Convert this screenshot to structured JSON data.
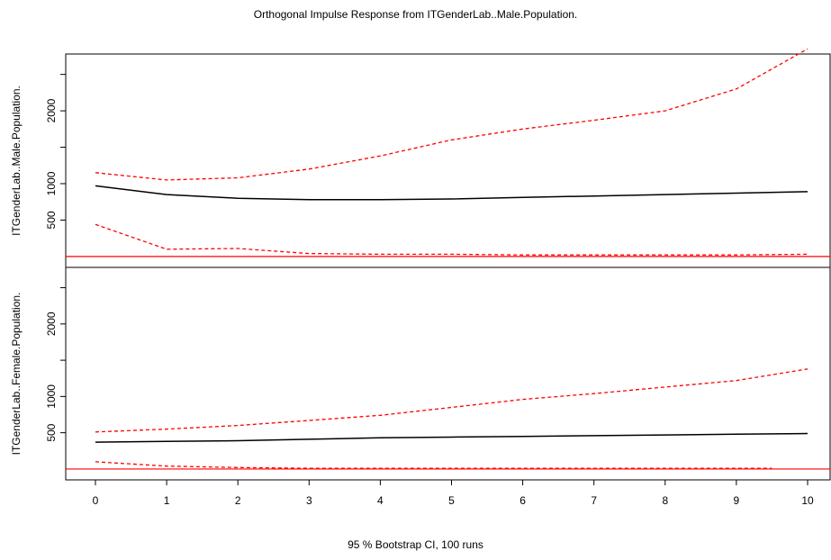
{
  "title": "Orthogonal Impulse Response from ITGenderLab..Male.Population.",
  "footer": "95 % Bootstrap CI,  100 runs",
  "chart_data": [
    {
      "type": "line",
      "ylabel": "ITGenderLab..Male.Population.",
      "x": [
        0,
        1,
        2,
        3,
        4,
        5,
        6,
        7,
        8,
        9,
        10
      ],
      "ylim": [
        -150,
        2780
      ],
      "yticks": [
        500,
        1000,
        2000
      ],
      "xticks": [
        0,
        1,
        2,
        3,
        4,
        5,
        6,
        7,
        8,
        9,
        10
      ],
      "zero_line": 0,
      "series": [
        {
          "role": "irf",
          "values": [
            970,
            850,
            800,
            780,
            780,
            790,
            810,
            830,
            850,
            870,
            890
          ],
          "color": "#000000",
          "dash": false
        },
        {
          "role": "upper",
          "values": [
            1150,
            1050,
            1080,
            1200,
            1380,
            1600,
            1750,
            1870,
            2000,
            2300,
            2850
          ],
          "color": "#ff0000",
          "dash": true
        },
        {
          "role": "lower",
          "values": [
            440,
            100,
            110,
            40,
            30,
            30,
            20,
            20,
            20,
            20,
            30
          ],
          "color": "#ff0000",
          "dash": true
        }
      ]
    },
    {
      "type": "line",
      "ylabel": "ITGenderLab..Female.Population.",
      "x": [
        0,
        1,
        2,
        3,
        4,
        5,
        6,
        7,
        8,
        9,
        10
      ],
      "ylim": [
        -150,
        2780
      ],
      "yticks": [
        500,
        1000,
        2000
      ],
      "xticks": [
        0,
        1,
        2,
        3,
        4,
        5,
        6,
        7,
        8,
        9,
        10
      ],
      "zero_line": 0,
      "series": [
        {
          "role": "irf",
          "values": [
            370,
            380,
            390,
            410,
            430,
            440,
            450,
            460,
            470,
            480,
            490
          ],
          "color": "#000000",
          "dash": false
        },
        {
          "role": "upper",
          "values": [
            510,
            550,
            600,
            670,
            740,
            850,
            960,
            1040,
            1130,
            1220,
            1380
          ],
          "color": "#ff0000",
          "dash": true
        },
        {
          "role": "lower",
          "values": [
            100,
            40,
            20,
            10,
            10,
            10,
            10,
            10,
            10,
            10,
            null
          ],
          "color": "#ff0000",
          "dash": true
        }
      ]
    }
  ]
}
